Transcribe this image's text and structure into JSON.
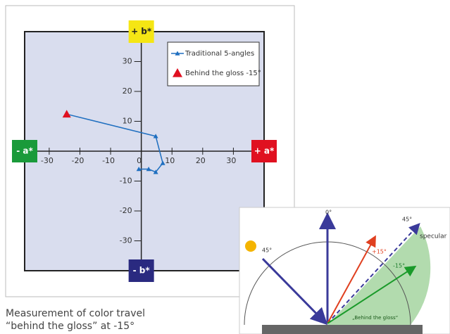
{
  "chart_data": {
    "type": "line",
    "xlim": [
      -38,
      40
    ],
    "ylim": [
      -40,
      40
    ],
    "xticks": [
      -30,
      -20,
      -10,
      0,
      10,
      20,
      30
    ],
    "yticks": [
      -30,
      -20,
      -10,
      10,
      20,
      30
    ],
    "axis_labels": {
      "top": "+ b*",
      "bottom": "- b*",
      "left": "- a*",
      "right": "+ a*"
    },
    "series": [
      {
        "name": "Traditional 5-angles",
        "color": "#1f6fc0",
        "marker": "triangle",
        "x": [
          4.7,
          7,
          4.7,
          2.4,
          -0.8
        ],
        "values": [
          5,
          -4,
          -7,
          -6,
          -6
        ]
      },
      {
        "name": "Behind the gloss -15°",
        "color": "#e01020",
        "marker": "triangle",
        "x": [
          -24.3
        ],
        "values": [
          12.4
        ]
      }
    ]
  },
  "diagram": {
    "labels": [
      "0°",
      "45°",
      "45°",
      "specular",
      "+15°",
      "-15°",
      "„Behind the gloss“"
    ]
  },
  "caption": "Measurement of color travel “behind the gloss” at -15°"
}
